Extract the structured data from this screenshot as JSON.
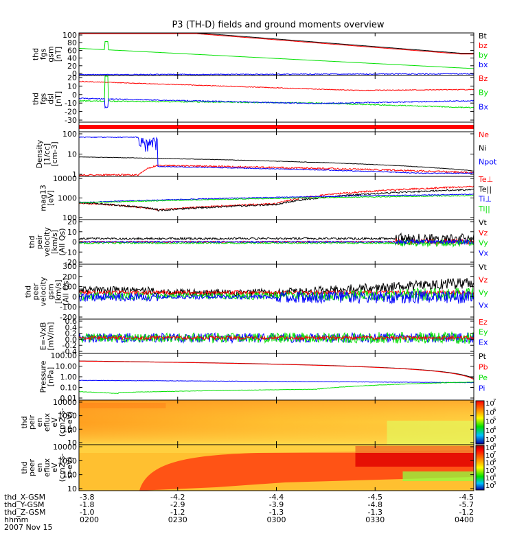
{
  "title": "P3 (TH-D) fields and ground moments overview",
  "colors": {
    "black": "#000000",
    "red": "#ff0000",
    "green": "#00e000",
    "blue": "#0000ff"
  },
  "chart_data": {
    "type": "line",
    "time_range": [
      "0200",
      "0400"
    ],
    "x_ticks": [
      {
        "t": "0200",
        "x_gsm": "-3.8",
        "y_gsm": "-1.8",
        "z_gsm": "-1.0",
        "hhmm": "0200"
      },
      {
        "t": "0230",
        "x_gsm": "-4.2",
        "y_gsm": "-2.9",
        "z_gsm": "-1.2",
        "hhmm": "0230"
      },
      {
        "t": "0300",
        "x_gsm": "-4.4",
        "y_gsm": "-3.9",
        "z_gsm": "-1.3",
        "hhmm": "0300"
      },
      {
        "t": "0330",
        "x_gsm": "-4.5",
        "y_gsm": "-4.8",
        "z_gsm": "-1.3",
        "hhmm": "0330"
      },
      {
        "t": "0400",
        "x_gsm": "-4.5",
        "y_gsm": "-5.7",
        "z_gsm": "-1.2",
        "hhmm": "0400"
      }
    ],
    "bottom_labels": {
      "x_gsm": "thd_X-GSM",
      "y_gsm": "thd_Y-GSM",
      "z_gsm": "thd_Z-GSM",
      "hhmm": "hhmm",
      "date": "2007 Nov 15"
    },
    "panels": [
      {
        "ylabel": [
          "thd",
          "fgs",
          "gsm",
          "[nT]"
        ],
        "yticks": [
          "100",
          "80",
          "60",
          "40",
          "20",
          "0"
        ],
        "ylim": [
          -5,
          100
        ],
        "legend": [
          {
            "label": "Bt",
            "color": "#000000"
          },
          {
            "label": "bz",
            "color": "#ff0000"
          },
          {
            "label": "by",
            "color": "#00e000"
          },
          {
            "label": "bx",
            "color": "#0000ff"
          }
        ]
      },
      {
        "ylabel": [
          "thd",
          "fgs",
          "dsl",
          "[nT]"
        ],
        "yticks": [
          "20",
          "10",
          "0",
          "-10",
          "-20",
          "-30"
        ],
        "ylim": [
          -33,
          22
        ],
        "legend": [
          {
            "label": "Bz",
            "color": "#ff0000"
          },
          {
            "label": "By",
            "color": "#00e000"
          },
          {
            "label": "Bx",
            "color": "#0000ff"
          }
        ]
      },
      {
        "ylabel": [],
        "yticks": [],
        "legend": []
      },
      {
        "ylabel": [
          "Density",
          "[1/cc]",
          "[cm-3]"
        ],
        "yticks": [
          "100",
          "10",
          "1"
        ],
        "scale": "log",
        "legend": [
          {
            "label": "Ne",
            "color": "#ff0000"
          },
          {
            "label": "Ni",
            "color": "#000000"
          },
          {
            "label": "Npot",
            "color": "#0000ff"
          }
        ]
      },
      {
        "ylabel": [
          "mag13",
          "[eV]"
        ],
        "yticks": [
          "10000",
          "1000",
          "100"
        ],
        "scale": "log",
        "legend": [
          {
            "label": "Te⊥",
            "color": "#ff0000"
          },
          {
            "label": "Te||",
            "color": "#000000"
          },
          {
            "label": "Ti⊥",
            "color": "#0000ff"
          },
          {
            "label": "Ti||",
            "color": "#00e000"
          }
        ]
      },
      {
        "ylabel": [
          "thd",
          "peir",
          "velocity",
          "[km/s]",
          "(All Qs)"
        ],
        "yticks": [
          "20",
          "10",
          "0",
          "-10",
          "-20"
        ],
        "ylim": [
          -20,
          20
        ],
        "legend": [
          {
            "label": "Vt",
            "color": "#000000"
          },
          {
            "label": "Vz",
            "color": "#ff0000"
          },
          {
            "label": "Vy",
            "color": "#00e000"
          },
          {
            "label": "Vx",
            "color": "#0000ff"
          }
        ]
      },
      {
        "ylabel": [
          "thd",
          "peer",
          "velocity",
          "gsm",
          "[km/s]",
          "(All Qs)"
        ],
        "yticks": [
          "300",
          "200",
          "100",
          "0",
          "-100",
          "-200"
        ],
        "ylim": [
          -200,
          300
        ],
        "legend": [
          {
            "label": "Vt",
            "color": "#000000"
          },
          {
            "label": "Vz",
            "color": "#ff0000"
          },
          {
            "label": "Vy",
            "color": "#00e000"
          },
          {
            "label": "Vx",
            "color": "#0000ff"
          }
        ]
      },
      {
        "ylabel": [
          "E=-VxB",
          "[mV/m]"
        ],
        "yticks": [
          "0.6",
          "0.4",
          "0.2",
          "0.0",
          "-0.2",
          "-0.4"
        ],
        "ylim": [
          -0.5,
          0.6
        ],
        "legend": [
          {
            "label": "Ez",
            "color": "#ff0000"
          },
          {
            "label": "Ey",
            "color": "#00e000"
          },
          {
            "label": "Ex",
            "color": "#0000ff"
          }
        ]
      },
      {
        "ylabel": [
          "Pressure",
          "[nPa]"
        ],
        "yticks": [
          "100.00",
          "10.00",
          "1.00",
          "0.10",
          "0.01"
        ],
        "scale": "log",
        "legend": [
          {
            "label": "Pt",
            "color": "#000000"
          },
          {
            "label": "Pb",
            "color": "#ff0000"
          },
          {
            "label": "Pe",
            "color": "#00e000"
          },
          {
            "label": "Pi",
            "color": "#0000ff"
          }
        ]
      },
      {
        "type": "heatmap",
        "ylabel": [
          "thd",
          "peir",
          "en",
          "eflux",
          "eV",
          "(cm2-s-",
          "sr-eV)"
        ],
        "yticks": [
          "10000",
          "1000",
          "100",
          "10"
        ],
        "colorbar": [
          "10",
          "10",
          "10",
          "10",
          "10"
        ],
        "colorbar_exp": [
          "7",
          "6",
          "5",
          "4",
          "3"
        ]
      },
      {
        "type": "heatmap",
        "ylabel": [
          "thd",
          "peer",
          "en",
          "eflux",
          "eV",
          "(cm2-s-",
          "sr-eV)"
        ],
        "yticks": [
          "10000",
          "1000",
          "100",
          "10"
        ],
        "colorbar": [
          "10",
          "10",
          "10",
          "10",
          "10",
          "10"
        ],
        "colorbar_exp": [
          "8",
          "7",
          "6",
          "5",
          "4",
          "3"
        ]
      }
    ]
  }
}
